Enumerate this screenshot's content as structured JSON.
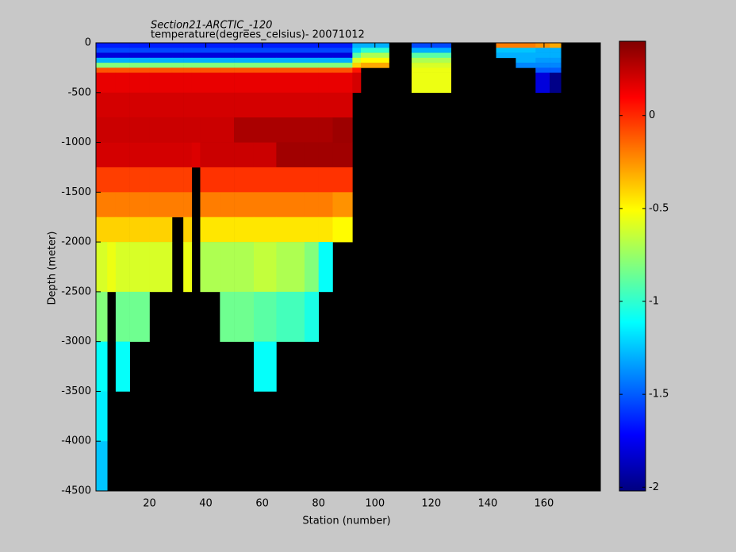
{
  "chart_data": {
    "type": "heatmap",
    "title": "Section21-ARCTIC_-120",
    "subtitle": "temperature(degrees_celsius)- 20071012",
    "x_label": "Station (number)",
    "y_label": "Depth (meter)",
    "xlim": [
      1,
      180
    ],
    "ylim": [
      -4500,
      0
    ],
    "xticks": [
      20,
      40,
      60,
      80,
      100,
      120,
      140,
      160
    ],
    "yticks": [
      0,
      -500,
      -1000,
      -1500,
      -2000,
      -2500,
      -3000,
      -3500,
      -4000,
      -4500
    ],
    "colormap": "jet",
    "clim": [
      -2.02,
      0.4
    ],
    "cticks": [
      -2,
      -1.5,
      -1,
      -0.5,
      0
    ],
    "x_edges": [
      1,
      5,
      8,
      13,
      20,
      28,
      32,
      35,
      38,
      45,
      50,
      57,
      65,
      75,
      80,
      85,
      92,
      95,
      105,
      113,
      120,
      127,
      143,
      150,
      157,
      162,
      166,
      180
    ],
    "y_edges": [
      0,
      -50,
      -100,
      -150,
      -200,
      -250,
      -300,
      -500,
      -750,
      -1000,
      -1250,
      -1500,
      -1750,
      -2000,
      -2500,
      -3000,
      -3500,
      -4000,
      -4500
    ],
    "z": [
      [
        -1.65,
        -1.65,
        -1.65,
        -1.65,
        -1.65,
        -1.65,
        -1.65,
        -1.65,
        -1.65,
        -1.65,
        -1.65,
        -1.65,
        -1.65,
        -1.65,
        -1.65,
        -1.65,
        -1.3,
        -1.3,
        null,
        -1.55,
        -1.55,
        null,
        -0.2,
        -0.2,
        -0.25,
        -0.3,
        null
      ],
      [
        -1.55,
        -1.55,
        -1.55,
        -1.55,
        -1.55,
        -1.55,
        -1.55,
        -1.55,
        -1.55,
        -1.55,
        -1.55,
        -1.55,
        -1.55,
        -1.55,
        -1.55,
        -1.55,
        -1.2,
        -1.0,
        null,
        -1.3,
        -1.3,
        null,
        -1.25,
        -1.25,
        -1.3,
        -1.3,
        null
      ],
      [
        -1.8,
        -1.8,
        -1.8,
        -1.8,
        -1.8,
        -1.8,
        -1.8,
        -1.8,
        -1.8,
        -1.8,
        -1.8,
        -1.8,
        -1.8,
        -1.8,
        -1.8,
        -1.8,
        -0.9,
        -0.7,
        null,
        -0.9,
        -0.9,
        null,
        -1.3,
        -1.3,
        -1.3,
        -1.3,
        null
      ],
      [
        -1.3,
        -1.3,
        -1.3,
        -1.3,
        -1.3,
        -1.3,
        -1.3,
        -1.3,
        -1.3,
        -1.3,
        -1.3,
        -1.3,
        -1.3,
        -1.3,
        -1.3,
        -1.3,
        -0.6,
        -0.5,
        null,
        -0.7,
        -0.7,
        null,
        null,
        -1.3,
        -1.35,
        -1.35,
        null
      ],
      [
        -0.8,
        -0.8,
        -0.8,
        -0.8,
        -0.8,
        -0.8,
        -0.8,
        -0.8,
        -0.8,
        -0.8,
        -0.8,
        -0.8,
        -0.8,
        -0.8,
        -0.8,
        -0.8,
        -0.4,
        -0.3,
        null,
        -0.6,
        -0.6,
        null,
        null,
        -1.4,
        -1.4,
        -1.4,
        null
      ],
      [
        -0.1,
        -0.1,
        -0.1,
        -0.1,
        -0.1,
        -0.1,
        -0.1,
        -0.1,
        -0.1,
        -0.1,
        -0.1,
        -0.1,
        -0.1,
        -0.1,
        -0.1,
        -0.1,
        0.05,
        null,
        null,
        -0.55,
        -0.55,
        null,
        null,
        null,
        -1.5,
        -1.5,
        null
      ],
      [
        0.15,
        0.15,
        0.15,
        0.15,
        0.15,
        0.15,
        0.15,
        0.15,
        0.15,
        0.15,
        0.15,
        0.15,
        0.15,
        0.15,
        0.15,
        0.15,
        0.2,
        null,
        null,
        -0.55,
        -0.55,
        null,
        null,
        null,
        -1.8,
        -2.0,
        null
      ],
      [
        0.2,
        0.2,
        0.2,
        0.2,
        0.2,
        0.2,
        0.2,
        0.2,
        0.2,
        0.2,
        0.2,
        0.2,
        0.2,
        0.2,
        0.2,
        0.2,
        null,
        null,
        null,
        null,
        null,
        null,
        null,
        null,
        null,
        null,
        null
      ],
      [
        0.22,
        0.22,
        0.22,
        0.22,
        0.22,
        0.22,
        0.22,
        0.22,
        0.22,
        0.22,
        0.3,
        0.3,
        0.3,
        0.3,
        0.3,
        0.33,
        null,
        null,
        null,
        null,
        null,
        null,
        null,
        null,
        null,
        null,
        null
      ],
      [
        0.2,
        0.2,
        0.2,
        0.2,
        0.2,
        0.2,
        0.2,
        0.18,
        0.22,
        0.22,
        0.22,
        0.22,
        0.32,
        0.32,
        0.32,
        0.32,
        null,
        null,
        null,
        null,
        null,
        null,
        null,
        null,
        null,
        null,
        null
      ],
      [
        -0.05,
        -0.05,
        -0.05,
        -0.05,
        -0.05,
        -0.05,
        -0.05,
        null,
        -0.02,
        -0.02,
        -0.02,
        -0.02,
        -0.02,
        -0.02,
        -0.02,
        -0.02,
        null,
        null,
        null,
        null,
        null,
        null,
        null,
        null,
        null,
        null,
        null
      ],
      [
        -0.2,
        -0.2,
        -0.2,
        -0.2,
        -0.2,
        -0.2,
        -0.2,
        null,
        -0.2,
        -0.2,
        -0.2,
        -0.2,
        -0.2,
        -0.2,
        -0.2,
        -0.25,
        null,
        null,
        null,
        null,
        null,
        null,
        null,
        null,
        null,
        null,
        null
      ],
      [
        -0.4,
        -0.4,
        -0.4,
        -0.4,
        -0.4,
        null,
        -0.4,
        null,
        -0.45,
        -0.45,
        -0.45,
        -0.45,
        -0.45,
        -0.45,
        -0.45,
        -0.5,
        null,
        null,
        null,
        null,
        null,
        null,
        null,
        null,
        null,
        null,
        null
      ],
      [
        -0.6,
        -0.55,
        -0.6,
        -0.6,
        -0.6,
        null,
        -0.55,
        null,
        -0.7,
        -0.7,
        -0.7,
        -0.65,
        -0.7,
        -0.8,
        -1.1,
        null,
        null,
        null,
        null,
        null,
        null,
        null,
        null,
        null,
        null,
        null,
        null
      ],
      [
        -0.8,
        null,
        -0.85,
        -0.85,
        null,
        null,
        null,
        null,
        null,
        -0.85,
        -0.85,
        -0.9,
        -0.95,
        -1.05,
        null,
        null,
        null,
        null,
        null,
        null,
        null,
        null,
        null,
        null,
        null,
        null,
        null
      ],
      [
        -1.1,
        null,
        -1.1,
        null,
        null,
        null,
        null,
        null,
        null,
        null,
        null,
        -1.1,
        null,
        null,
        null,
        null,
        null,
        null,
        null,
        null,
        null,
        null,
        null,
        null,
        null,
        null,
        null
      ],
      [
        -1.15,
        null,
        null,
        null,
        null,
        null,
        null,
        null,
        null,
        null,
        null,
        null,
        null,
        null,
        null,
        null,
        null,
        null,
        null,
        null,
        null,
        null,
        null,
        null,
        null,
        null,
        null
      ],
      [
        -1.25,
        null,
        null,
        null,
        null,
        null,
        null,
        null,
        null,
        null,
        null,
        null,
        null,
        null,
        null,
        null,
        null,
        null,
        null,
        null,
        null,
        null,
        null,
        null,
        null,
        null,
        null
      ]
    ]
  }
}
